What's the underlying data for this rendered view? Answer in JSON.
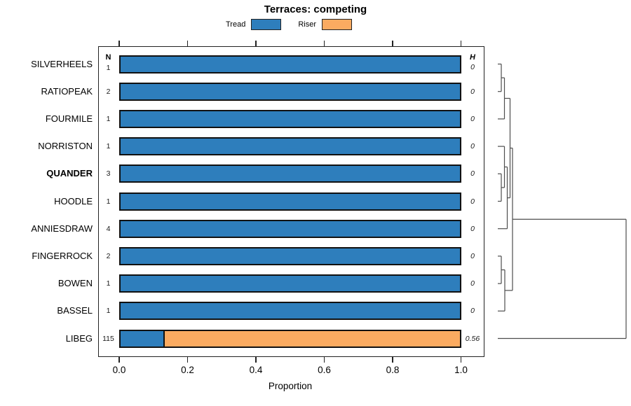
{
  "title": "Terraces: competing",
  "legend": {
    "items": [
      {
        "label": "Tread",
        "color": "#2e7ebc"
      },
      {
        "label": "Riser",
        "color": "#fbab61"
      }
    ]
  },
  "columns": {
    "n_header": "N",
    "h_header": "H"
  },
  "axis": {
    "xlabel": "Proportion",
    "tick_labels": [
      "0.0",
      "0.2",
      "0.4",
      "0.6",
      "0.8",
      "1.0"
    ],
    "tick_values": [
      0,
      0.2,
      0.4,
      0.6,
      0.8,
      1
    ]
  },
  "chart_data": {
    "type": "bar",
    "orientation": "horizontal",
    "stacked": true,
    "title": "Terraces: competing",
    "xlabel": "Proportion",
    "xlim": [
      0,
      1
    ],
    "series": [
      "Tread",
      "Riser"
    ],
    "categories": [
      "SILVERHEELS",
      "RATIOPEAK",
      "FOURMILE",
      "NORRISTON",
      "QUANDER",
      "HOODLE",
      "ANNIESDRAW",
      "FINGERROCK",
      "BOWEN",
      "BASSEL",
      "LIBEG"
    ],
    "rows": [
      {
        "label": "SILVERHEELS",
        "bold": false,
        "n": "1",
        "h": "0",
        "tread": 1,
        "riser": 0
      },
      {
        "label": "RATIOPEAK",
        "bold": false,
        "n": "2",
        "h": "0",
        "tread": 1,
        "riser": 0
      },
      {
        "label": "FOURMILE",
        "bold": false,
        "n": "1",
        "h": "0",
        "tread": 1,
        "riser": 0
      },
      {
        "label": "NORRISTON",
        "bold": false,
        "n": "1",
        "h": "0",
        "tread": 1,
        "riser": 0
      },
      {
        "label": "QUANDER",
        "bold": true,
        "n": "3",
        "h": "0",
        "tread": 1,
        "riser": 0
      },
      {
        "label": "HOODLE",
        "bold": false,
        "n": "1",
        "h": "0",
        "tread": 1,
        "riser": 0
      },
      {
        "label": "ANNIESDRAW",
        "bold": false,
        "n": "4",
        "h": "0",
        "tread": 1,
        "riser": 0
      },
      {
        "label": "FINGERROCK",
        "bold": false,
        "n": "2",
        "h": "0",
        "tread": 1,
        "riser": 0
      },
      {
        "label": "BOWEN",
        "bold": false,
        "n": "1",
        "h": "0",
        "tread": 1,
        "riser": 0
      },
      {
        "label": "BASSEL",
        "bold": false,
        "n": "1",
        "h": "0",
        "tread": 1,
        "riser": 0
      },
      {
        "label": "LIBEG",
        "bold": false,
        "n": "115",
        "h": "0.56",
        "tread": 0.13,
        "riser": 0.87
      }
    ],
    "dendrogram": {
      "side": "right",
      "merges": [
        {
          "a": "L0",
          "b": "L1",
          "hx": 715
        },
        {
          "a": "M0",
          "b": "L2",
          "hx": 719.5
        },
        {
          "a": "L4",
          "b": "L5",
          "hx": 715
        },
        {
          "a": "L3",
          "b": "M2",
          "hx": 719.5
        },
        {
          "a": "M3",
          "b": "L6",
          "hx": 723.5
        },
        {
          "a": "M1",
          "b": "M4",
          "hx": 727.5
        },
        {
          "a": "L7",
          "b": "L8",
          "hx": 715
        },
        {
          "a": "M6",
          "b": "L9",
          "hx": 720
        },
        {
          "a": "M5",
          "b": "M7",
          "hx": 731
        },
        {
          "a": "M8",
          "b": "L10",
          "hx": 893
        }
      ]
    }
  }
}
